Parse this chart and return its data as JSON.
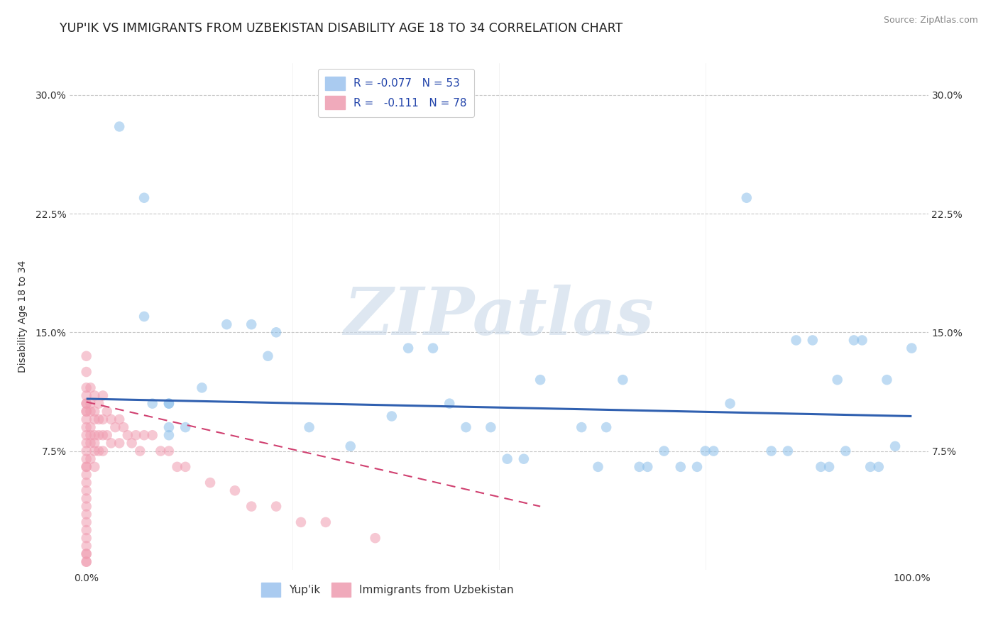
{
  "title": "YUP'IK VS IMMIGRANTS FROM UZBEKISTAN DISABILITY AGE 18 TO 34 CORRELATION CHART",
  "source": "Source: ZipAtlas.com",
  "ylabel": "Disability Age 18 to 34",
  "xlim": [
    -0.02,
    1.02
  ],
  "ylim": [
    0.0,
    0.32
  ],
  "xtick_positions": [
    0.0,
    1.0
  ],
  "xtick_labels": [
    "0.0%",
    "100.0%"
  ],
  "ytick_vals": [
    0.075,
    0.15,
    0.225,
    0.3
  ],
  "ytick_labels": [
    "7.5%",
    "15.0%",
    "22.5%",
    "30.0%"
  ],
  "blue_scatter_x": [
    0.04,
    0.07,
    0.07,
    0.08,
    0.1,
    0.1,
    0.1,
    0.1,
    0.12,
    0.14,
    0.17,
    0.2,
    0.22,
    0.23,
    0.27,
    0.32,
    0.37,
    0.39,
    0.42,
    0.44,
    0.46,
    0.49,
    0.51,
    0.53,
    0.55,
    0.6,
    0.62,
    0.63,
    0.65,
    0.67,
    0.68,
    0.7,
    0.72,
    0.74,
    0.75,
    0.76,
    0.78,
    0.8,
    0.83,
    0.85,
    0.86,
    0.88,
    0.89,
    0.9,
    0.91,
    0.92,
    0.93,
    0.94,
    0.95,
    0.96,
    0.97,
    0.98,
    1.0
  ],
  "blue_scatter_y": [
    0.28,
    0.235,
    0.16,
    0.105,
    0.105,
    0.105,
    0.09,
    0.085,
    0.09,
    0.115,
    0.155,
    0.155,
    0.135,
    0.15,
    0.09,
    0.078,
    0.097,
    0.14,
    0.14,
    0.105,
    0.09,
    0.09,
    0.07,
    0.07,
    0.12,
    0.09,
    0.065,
    0.09,
    0.12,
    0.065,
    0.065,
    0.075,
    0.065,
    0.065,
    0.075,
    0.075,
    0.105,
    0.235,
    0.075,
    0.075,
    0.145,
    0.145,
    0.065,
    0.065,
    0.12,
    0.075,
    0.145,
    0.145,
    0.065,
    0.065,
    0.12,
    0.078,
    0.14
  ],
  "pink_scatter_x": [
    0.0,
    0.0,
    0.0,
    0.0,
    0.0,
    0.0,
    0.0,
    0.0,
    0.0,
    0.0,
    0.0,
    0.0,
    0.0,
    0.0,
    0.0,
    0.0,
    0.0,
    0.0,
    0.0,
    0.0,
    0.0,
    0.0,
    0.0,
    0.0,
    0.0,
    0.0,
    0.0,
    0.0,
    0.0,
    0.0,
    0.005,
    0.005,
    0.005,
    0.005,
    0.005,
    0.005,
    0.005,
    0.01,
    0.01,
    0.01,
    0.01,
    0.01,
    0.01,
    0.01,
    0.015,
    0.015,
    0.015,
    0.015,
    0.02,
    0.02,
    0.02,
    0.02,
    0.025,
    0.025,
    0.03,
    0.03,
    0.035,
    0.04,
    0.04,
    0.045,
    0.05,
    0.055,
    0.06,
    0.065,
    0.07,
    0.08,
    0.09,
    0.1,
    0.11,
    0.12,
    0.15,
    0.18,
    0.2,
    0.23,
    0.26,
    0.29,
    0.35
  ],
  "pink_scatter_y": [
    0.135,
    0.125,
    0.115,
    0.11,
    0.105,
    0.105,
    0.1,
    0.1,
    0.095,
    0.09,
    0.085,
    0.08,
    0.075,
    0.07,
    0.065,
    0.065,
    0.06,
    0.055,
    0.05,
    0.045,
    0.04,
    0.035,
    0.03,
    0.025,
    0.02,
    0.015,
    0.01,
    0.01,
    0.005,
    0.005,
    0.115,
    0.105,
    0.1,
    0.09,
    0.085,
    0.08,
    0.07,
    0.11,
    0.1,
    0.095,
    0.085,
    0.08,
    0.075,
    0.065,
    0.105,
    0.095,
    0.085,
    0.075,
    0.11,
    0.095,
    0.085,
    0.075,
    0.1,
    0.085,
    0.095,
    0.08,
    0.09,
    0.095,
    0.08,
    0.09,
    0.085,
    0.08,
    0.085,
    0.075,
    0.085,
    0.085,
    0.075,
    0.075,
    0.065,
    0.065,
    0.055,
    0.05,
    0.04,
    0.04,
    0.03,
    0.03,
    0.02
  ],
  "blue_line_x0": 0.0,
  "blue_line_x1": 1.0,
  "blue_line_y0": 0.108,
  "blue_line_y1": 0.097,
  "pink_line_x0": 0.0,
  "pink_line_x1": 0.55,
  "pink_line_y0": 0.106,
  "pink_line_y1": 0.04,
  "bg_color": "#ffffff",
  "grid_color": "#c8c8c8",
  "blue_dot_color": "#8bbfea",
  "pink_dot_color": "#f09bb0",
  "blue_line_color": "#3060b0",
  "pink_line_color": "#d04070",
  "dot_size": 110,
  "dot_alpha": 0.55,
  "title_fontsize": 12.5,
  "label_fontsize": 10,
  "tick_fontsize": 10,
  "source_fontsize": 9,
  "legend_fontsize": 11,
  "watermark_text": "ZIPatlas",
  "watermark_color": "#c8d8e8",
  "watermark_alpha": 0.6,
  "watermark_fontsize": 68
}
